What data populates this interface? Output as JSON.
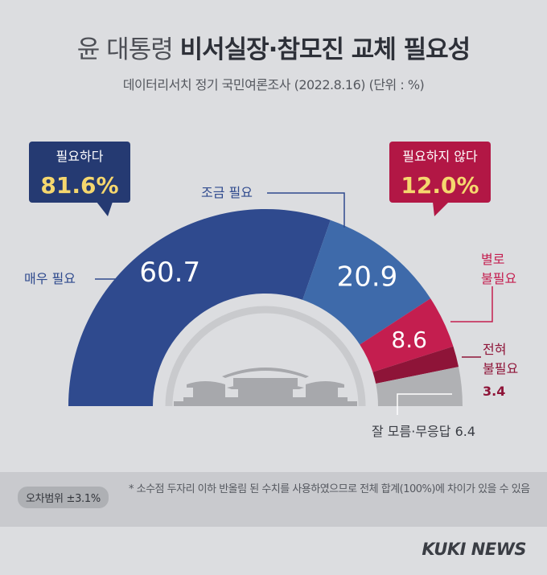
{
  "title_plain": "윤 대통령 ",
  "title_bold": "비서실장·참모진 교체 필요성",
  "subtitle": "데이터리서치 정기 국민여론조사 (2022.8.16)  (단위 : %)",
  "callouts": {
    "need": {
      "label": "필요하다",
      "value": "81.6%"
    },
    "not_need": {
      "label": "필요하지 않다",
      "value": "12.0%"
    }
  },
  "labels": {
    "very": "매우 필요",
    "some": "조금 필요",
    "not_much_1": "별로",
    "not_much_2": "불필요",
    "not_at_all_1": "전혀",
    "not_at_all_2": "불필요",
    "not_at_all_val": "3.4",
    "dk": "잘 모름·무응답 6.4"
  },
  "footer": {
    "margin": "오차범위 ±3.1%",
    "note": "* 소수점 두자리 이하 반올림 된 수치를 사용하였으므로 전체 합계(100%)에 차이가 있을 수 있음"
  },
  "logo": "KUKI NEWS",
  "colors": {
    "very": "#2f4a8e",
    "some": "#3e6aaa",
    "not_much": "#c41e4f",
    "not_at_all": "#8e1438",
    "dk": "#b0b1b4",
    "callout_need": "#253a72",
    "callout_not": "#b21745",
    "callout_value": "#f5d76e"
  },
  "chart_data": {
    "type": "pie",
    "categories": [
      "매우 필요",
      "조금 필요",
      "별로 불필요",
      "전혀 불필요",
      "잘 모름·무응답"
    ],
    "values": [
      60.7,
      20.9,
      8.6,
      3.4,
      6.4
    ],
    "labels": [
      "60.7",
      "20.9",
      "8.6",
      "3.4",
      "6.4"
    ],
    "groups": [
      {
        "name": "필요하다",
        "value": 81.6
      },
      {
        "name": "필요하지 않다",
        "value": 12.0
      }
    ]
  }
}
